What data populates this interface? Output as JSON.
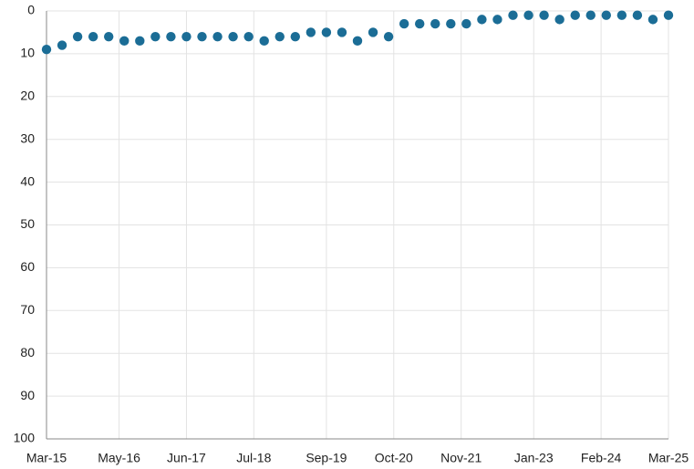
{
  "chart_data": {
    "type": "scatter",
    "color": "#1b6d96",
    "y_inverted": true,
    "grid": true,
    "x": [
      "2015-03",
      "2015-06",
      "2015-09",
      "2015-12",
      "2016-03",
      "2016-06",
      "2016-09",
      "2016-12",
      "2017-03",
      "2017-06",
      "2017-09",
      "2017-12",
      "2018-03",
      "2018-06",
      "2018-09",
      "2018-12",
      "2019-03",
      "2019-06",
      "2019-09",
      "2019-12",
      "2020-03",
      "2020-06",
      "2020-09",
      "2020-12",
      "2021-03",
      "2021-06",
      "2021-09",
      "2021-12",
      "2022-03",
      "2022-06",
      "2022-09",
      "2022-12",
      "2023-03",
      "2023-06",
      "2023-09",
      "2023-12",
      "2024-03",
      "2024-06",
      "2024-09",
      "2024-12",
      "2025-03"
    ],
    "values": [
      9,
      8,
      6,
      6,
      6,
      7,
      7,
      6,
      6,
      6,
      6,
      6,
      6,
      6,
      7,
      6,
      6,
      5,
      5,
      5,
      7,
      5,
      6,
      3,
      3,
      3,
      3,
      3,
      2,
      2,
      1,
      1,
      1,
      2,
      1,
      1,
      1,
      1,
      1,
      2,
      1
    ],
    "xlim": [
      "2015-03",
      "2025-03"
    ],
    "xticks": [
      {
        "value": "2015-03",
        "label": "Mar-15"
      },
      {
        "value": "2016-05",
        "label": "May-16"
      },
      {
        "value": "2017-06",
        "label": "Jun-17"
      },
      {
        "value": "2018-07",
        "label": "Jul-18"
      },
      {
        "value": "2019-09",
        "label": "Sep-19"
      },
      {
        "value": "2020-10",
        "label": "Oct-20"
      },
      {
        "value": "2021-11",
        "label": "Nov-21"
      },
      {
        "value": "2023-01",
        "label": "Jan-23"
      },
      {
        "value": "2024-02",
        "label": "Feb-24"
      },
      {
        "value": "2025-03",
        "label": "Mar-25"
      }
    ],
    "ylim": [
      0,
      100
    ],
    "yticks": [
      0,
      10,
      20,
      30,
      40,
      50,
      60,
      70,
      80,
      90,
      100
    ]
  }
}
